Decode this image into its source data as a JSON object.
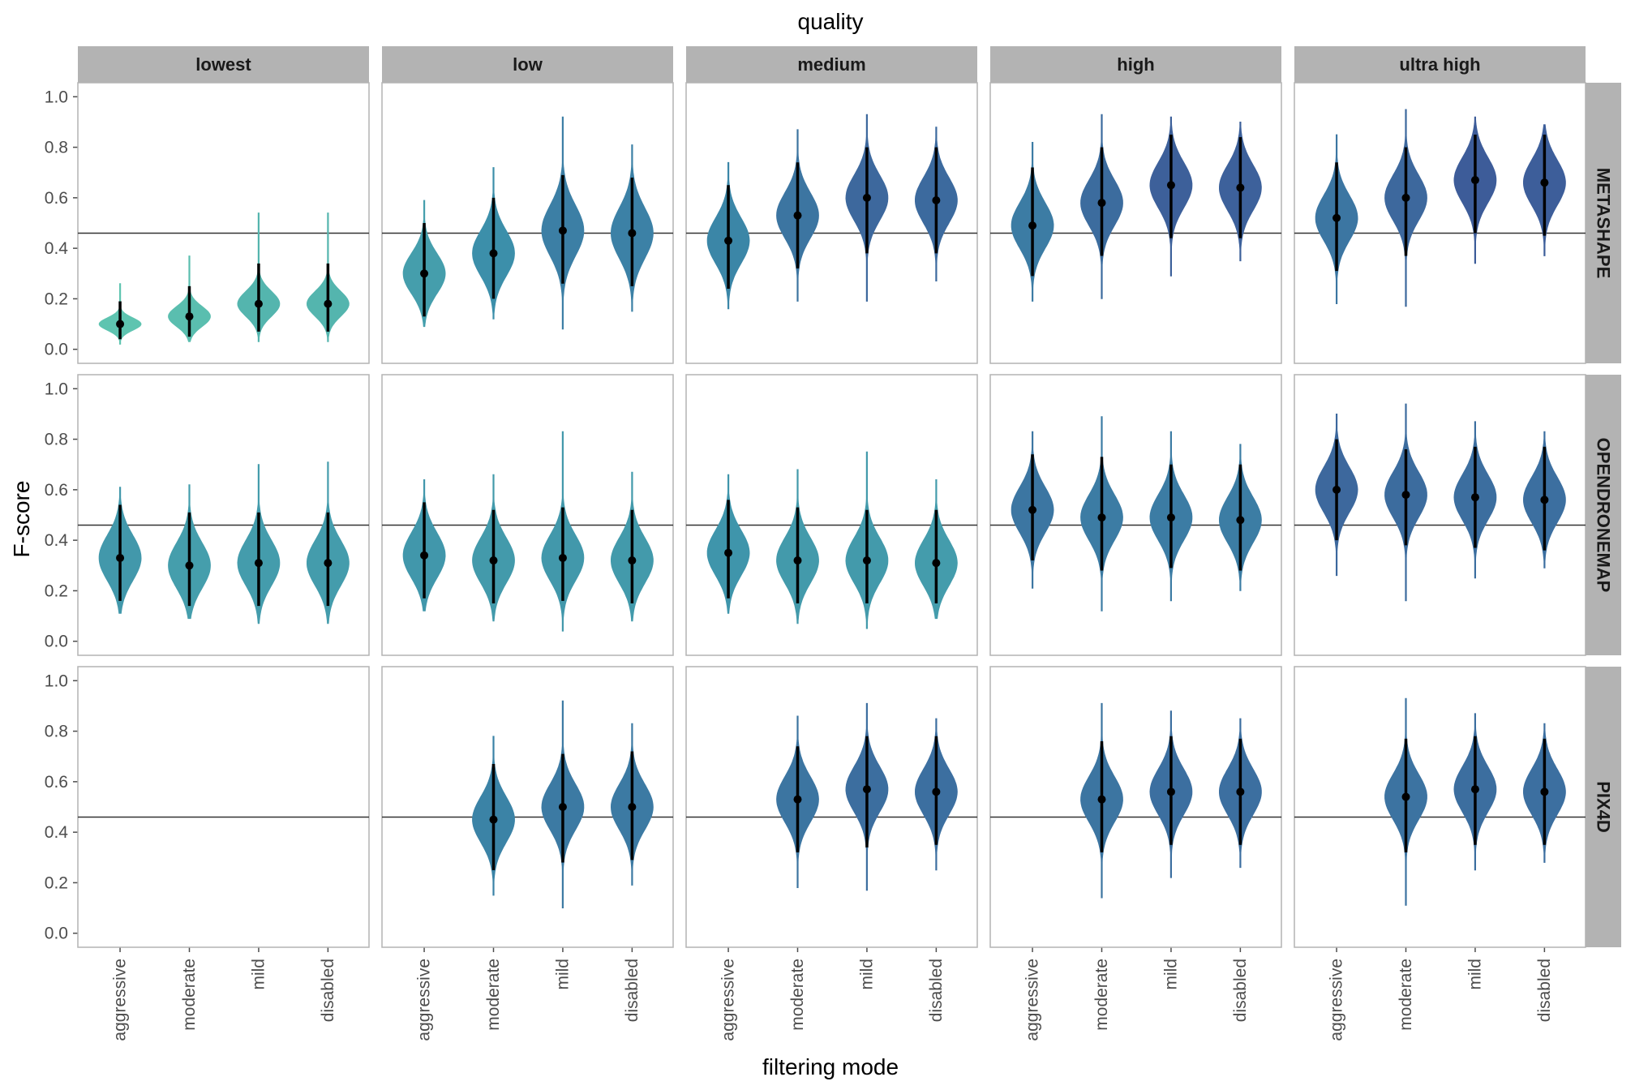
{
  "chart_data": {
    "type": "violin",
    "top_title": "quality",
    "xlabel": "filtering mode",
    "ylabel": "F-score",
    "ylim": [
      0,
      1
    ],
    "yticks": [
      0.0,
      0.2,
      0.4,
      0.6,
      0.8,
      1.0
    ],
    "ytick_labels": [
      "0.0",
      "0.2",
      "0.4",
      "0.6",
      "0.8",
      "1.0"
    ],
    "reference_line": 0.46,
    "columns": [
      "lowest",
      "low",
      "medium",
      "high",
      "ultra high"
    ],
    "rows": [
      "METASHAPE",
      "OPENDRONEMAP",
      "PIX4D"
    ],
    "categories": [
      "aggressive",
      "moderate",
      "mild",
      "disabled"
    ],
    "grid": false,
    "legend": "none",
    "color_low": "#5ec4b0",
    "color_mid": "#3b8eaa",
    "color_high": "#3d5c99",
    "panels": [
      {
        "row": "METASHAPE",
        "col": "lowest",
        "violins": [
          {
            "cat": "aggressive",
            "median": 0.1,
            "q1": 0.04,
            "q3": 0.19,
            "min": 0.02,
            "max": 0.26,
            "spread": 0.025
          },
          {
            "cat": "moderate",
            "median": 0.13,
            "q1": 0.05,
            "q3": 0.25,
            "min": 0.03,
            "max": 0.37,
            "spread": 0.04
          },
          {
            "cat": "mild",
            "median": 0.18,
            "q1": 0.07,
            "q3": 0.34,
            "min": 0.03,
            "max": 0.54,
            "spread": 0.05
          },
          {
            "cat": "disabled",
            "median": 0.18,
            "q1": 0.07,
            "q3": 0.34,
            "min": 0.03,
            "max": 0.54,
            "spread": 0.05
          }
        ]
      },
      {
        "row": "METASHAPE",
        "col": "low",
        "violins": [
          {
            "cat": "aggressive",
            "median": 0.3,
            "q1": 0.13,
            "q3": 0.5,
            "min": 0.09,
            "max": 0.59,
            "spread": 0.08
          },
          {
            "cat": "moderate",
            "median": 0.38,
            "q1": 0.2,
            "q3": 0.6,
            "min": 0.12,
            "max": 0.72,
            "spread": 0.09
          },
          {
            "cat": "mild",
            "median": 0.47,
            "q1": 0.26,
            "q3": 0.69,
            "min": 0.08,
            "max": 0.92,
            "spread": 0.1
          },
          {
            "cat": "disabled",
            "median": 0.46,
            "q1": 0.25,
            "q3": 0.68,
            "min": 0.15,
            "max": 0.81,
            "spread": 0.1
          }
        ]
      },
      {
        "row": "METASHAPE",
        "col": "medium",
        "violins": [
          {
            "cat": "aggressive",
            "median": 0.43,
            "q1": 0.24,
            "q3": 0.65,
            "min": 0.16,
            "max": 0.74,
            "spread": 0.09
          },
          {
            "cat": "moderate",
            "median": 0.53,
            "q1": 0.32,
            "q3": 0.74,
            "min": 0.19,
            "max": 0.87,
            "spread": 0.09
          },
          {
            "cat": "mild",
            "median": 0.6,
            "q1": 0.38,
            "q3": 0.8,
            "min": 0.19,
            "max": 0.93,
            "spread": 0.09
          },
          {
            "cat": "disabled",
            "median": 0.59,
            "q1": 0.38,
            "q3": 0.8,
            "min": 0.27,
            "max": 0.88,
            "spread": 0.09
          }
        ]
      },
      {
        "row": "METASHAPE",
        "col": "high",
        "violins": [
          {
            "cat": "aggressive",
            "median": 0.49,
            "q1": 0.29,
            "q3": 0.72,
            "min": 0.19,
            "max": 0.82,
            "spread": 0.09
          },
          {
            "cat": "moderate",
            "median": 0.58,
            "q1": 0.37,
            "q3": 0.8,
            "min": 0.2,
            "max": 0.93,
            "spread": 0.09
          },
          {
            "cat": "mild",
            "median": 0.65,
            "q1": 0.44,
            "q3": 0.85,
            "min": 0.29,
            "max": 0.92,
            "spread": 0.09
          },
          {
            "cat": "disabled",
            "median": 0.64,
            "q1": 0.44,
            "q3": 0.84,
            "min": 0.35,
            "max": 0.9,
            "spread": 0.09
          }
        ]
      },
      {
        "row": "METASHAPE",
        "col": "ultra high",
        "violins": [
          {
            "cat": "aggressive",
            "median": 0.52,
            "q1": 0.31,
            "q3": 0.74,
            "min": 0.18,
            "max": 0.85,
            "spread": 0.09
          },
          {
            "cat": "moderate",
            "median": 0.6,
            "q1": 0.37,
            "q3": 0.8,
            "min": 0.17,
            "max": 0.95,
            "spread": 0.09
          },
          {
            "cat": "mild",
            "median": 0.67,
            "q1": 0.46,
            "q3": 0.85,
            "min": 0.34,
            "max": 0.92,
            "spread": 0.09
          },
          {
            "cat": "disabled",
            "median": 0.66,
            "q1": 0.45,
            "q3": 0.85,
            "min": 0.37,
            "max": 0.89,
            "spread": 0.09
          }
        ]
      },
      {
        "row": "OPENDRONEMAP",
        "col": "lowest",
        "violins": [
          {
            "cat": "aggressive",
            "median": 0.33,
            "q1": 0.16,
            "q3": 0.54,
            "min": 0.11,
            "max": 0.61,
            "spread": 0.09
          },
          {
            "cat": "moderate",
            "median": 0.3,
            "q1": 0.14,
            "q3": 0.51,
            "min": 0.09,
            "max": 0.62,
            "spread": 0.09
          },
          {
            "cat": "mild",
            "median": 0.31,
            "q1": 0.14,
            "q3": 0.51,
            "min": 0.07,
            "max": 0.7,
            "spread": 0.09
          },
          {
            "cat": "disabled",
            "median": 0.31,
            "q1": 0.14,
            "q3": 0.51,
            "min": 0.07,
            "max": 0.71,
            "spread": 0.09
          }
        ]
      },
      {
        "row": "OPENDRONEMAP",
        "col": "low",
        "violins": [
          {
            "cat": "aggressive",
            "median": 0.34,
            "q1": 0.17,
            "q3": 0.55,
            "min": 0.12,
            "max": 0.64,
            "spread": 0.09
          },
          {
            "cat": "moderate",
            "median": 0.32,
            "q1": 0.15,
            "q3": 0.52,
            "min": 0.08,
            "max": 0.66,
            "spread": 0.09
          },
          {
            "cat": "mild",
            "median": 0.33,
            "q1": 0.16,
            "q3": 0.53,
            "min": 0.04,
            "max": 0.83,
            "spread": 0.09
          },
          {
            "cat": "disabled",
            "median": 0.32,
            "q1": 0.15,
            "q3": 0.52,
            "min": 0.08,
            "max": 0.67,
            "spread": 0.09
          }
        ]
      },
      {
        "row": "OPENDRONEMAP",
        "col": "medium",
        "violins": [
          {
            "cat": "aggressive",
            "median": 0.35,
            "q1": 0.17,
            "q3": 0.56,
            "min": 0.11,
            "max": 0.66,
            "spread": 0.09
          },
          {
            "cat": "moderate",
            "median": 0.32,
            "q1": 0.15,
            "q3": 0.53,
            "min": 0.07,
            "max": 0.68,
            "spread": 0.09
          },
          {
            "cat": "mild",
            "median": 0.32,
            "q1": 0.15,
            "q3": 0.52,
            "min": 0.05,
            "max": 0.75,
            "spread": 0.09
          },
          {
            "cat": "disabled",
            "median": 0.31,
            "q1": 0.15,
            "q3": 0.52,
            "min": 0.09,
            "max": 0.64,
            "spread": 0.09
          }
        ]
      },
      {
        "row": "OPENDRONEMAP",
        "col": "high",
        "violins": [
          {
            "cat": "aggressive",
            "median": 0.52,
            "q1": 0.32,
            "q3": 0.74,
            "min": 0.21,
            "max": 0.83,
            "spread": 0.09
          },
          {
            "cat": "moderate",
            "median": 0.49,
            "q1": 0.28,
            "q3": 0.73,
            "min": 0.12,
            "max": 0.89,
            "spread": 0.09
          },
          {
            "cat": "mild",
            "median": 0.49,
            "q1": 0.29,
            "q3": 0.7,
            "min": 0.16,
            "max": 0.83,
            "spread": 0.09
          },
          {
            "cat": "disabled",
            "median": 0.48,
            "q1": 0.28,
            "q3": 0.7,
            "min": 0.2,
            "max": 0.78,
            "spread": 0.09
          }
        ]
      },
      {
        "row": "OPENDRONEMAP",
        "col": "ultra high",
        "violins": [
          {
            "cat": "aggressive",
            "median": 0.6,
            "q1": 0.4,
            "q3": 0.8,
            "min": 0.26,
            "max": 0.9,
            "spread": 0.09
          },
          {
            "cat": "moderate",
            "median": 0.58,
            "q1": 0.38,
            "q3": 0.76,
            "min": 0.16,
            "max": 0.94,
            "spread": 0.09
          },
          {
            "cat": "mild",
            "median": 0.57,
            "q1": 0.37,
            "q3": 0.77,
            "min": 0.25,
            "max": 0.87,
            "spread": 0.09
          },
          {
            "cat": "disabled",
            "median": 0.56,
            "q1": 0.36,
            "q3": 0.77,
            "min": 0.29,
            "max": 0.83,
            "spread": 0.09
          }
        ]
      },
      {
        "row": "PIX4D",
        "col": "lowest",
        "violins": []
      },
      {
        "row": "PIX4D",
        "col": "low",
        "violins": [
          {
            "cat": "moderate",
            "median": 0.45,
            "q1": 0.25,
            "q3": 0.67,
            "min": 0.15,
            "max": 0.78,
            "spread": 0.09
          },
          {
            "cat": "mild",
            "median": 0.5,
            "q1": 0.28,
            "q3": 0.71,
            "min": 0.1,
            "max": 0.92,
            "spread": 0.09
          },
          {
            "cat": "disabled",
            "median": 0.5,
            "q1": 0.29,
            "q3": 0.72,
            "min": 0.19,
            "max": 0.83,
            "spread": 0.09
          }
        ]
      },
      {
        "row": "PIX4D",
        "col": "medium",
        "violins": [
          {
            "cat": "moderate",
            "median": 0.53,
            "q1": 0.32,
            "q3": 0.74,
            "min": 0.18,
            "max": 0.86,
            "spread": 0.09
          },
          {
            "cat": "mild",
            "median": 0.57,
            "q1": 0.34,
            "q3": 0.78,
            "min": 0.17,
            "max": 0.91,
            "spread": 0.09
          },
          {
            "cat": "disabled",
            "median": 0.56,
            "q1": 0.35,
            "q3": 0.78,
            "min": 0.25,
            "max": 0.85,
            "spread": 0.09
          }
        ]
      },
      {
        "row": "PIX4D",
        "col": "high",
        "violins": [
          {
            "cat": "moderate",
            "median": 0.53,
            "q1": 0.32,
            "q3": 0.76,
            "min": 0.14,
            "max": 0.91,
            "spread": 0.09
          },
          {
            "cat": "mild",
            "median": 0.56,
            "q1": 0.35,
            "q3": 0.78,
            "min": 0.22,
            "max": 0.88,
            "spread": 0.09
          },
          {
            "cat": "disabled",
            "median": 0.56,
            "q1": 0.35,
            "q3": 0.77,
            "min": 0.26,
            "max": 0.85,
            "spread": 0.09
          }
        ]
      },
      {
        "row": "PIX4D",
        "col": "ultra high",
        "violins": [
          {
            "cat": "moderate",
            "median": 0.54,
            "q1": 0.32,
            "q3": 0.77,
            "min": 0.11,
            "max": 0.93,
            "spread": 0.09
          },
          {
            "cat": "mild",
            "median": 0.57,
            "q1": 0.35,
            "q3": 0.78,
            "min": 0.25,
            "max": 0.87,
            "spread": 0.09
          },
          {
            "cat": "disabled",
            "median": 0.56,
            "q1": 0.35,
            "q3": 0.77,
            "min": 0.28,
            "max": 0.83,
            "spread": 0.09
          }
        ]
      }
    ]
  }
}
